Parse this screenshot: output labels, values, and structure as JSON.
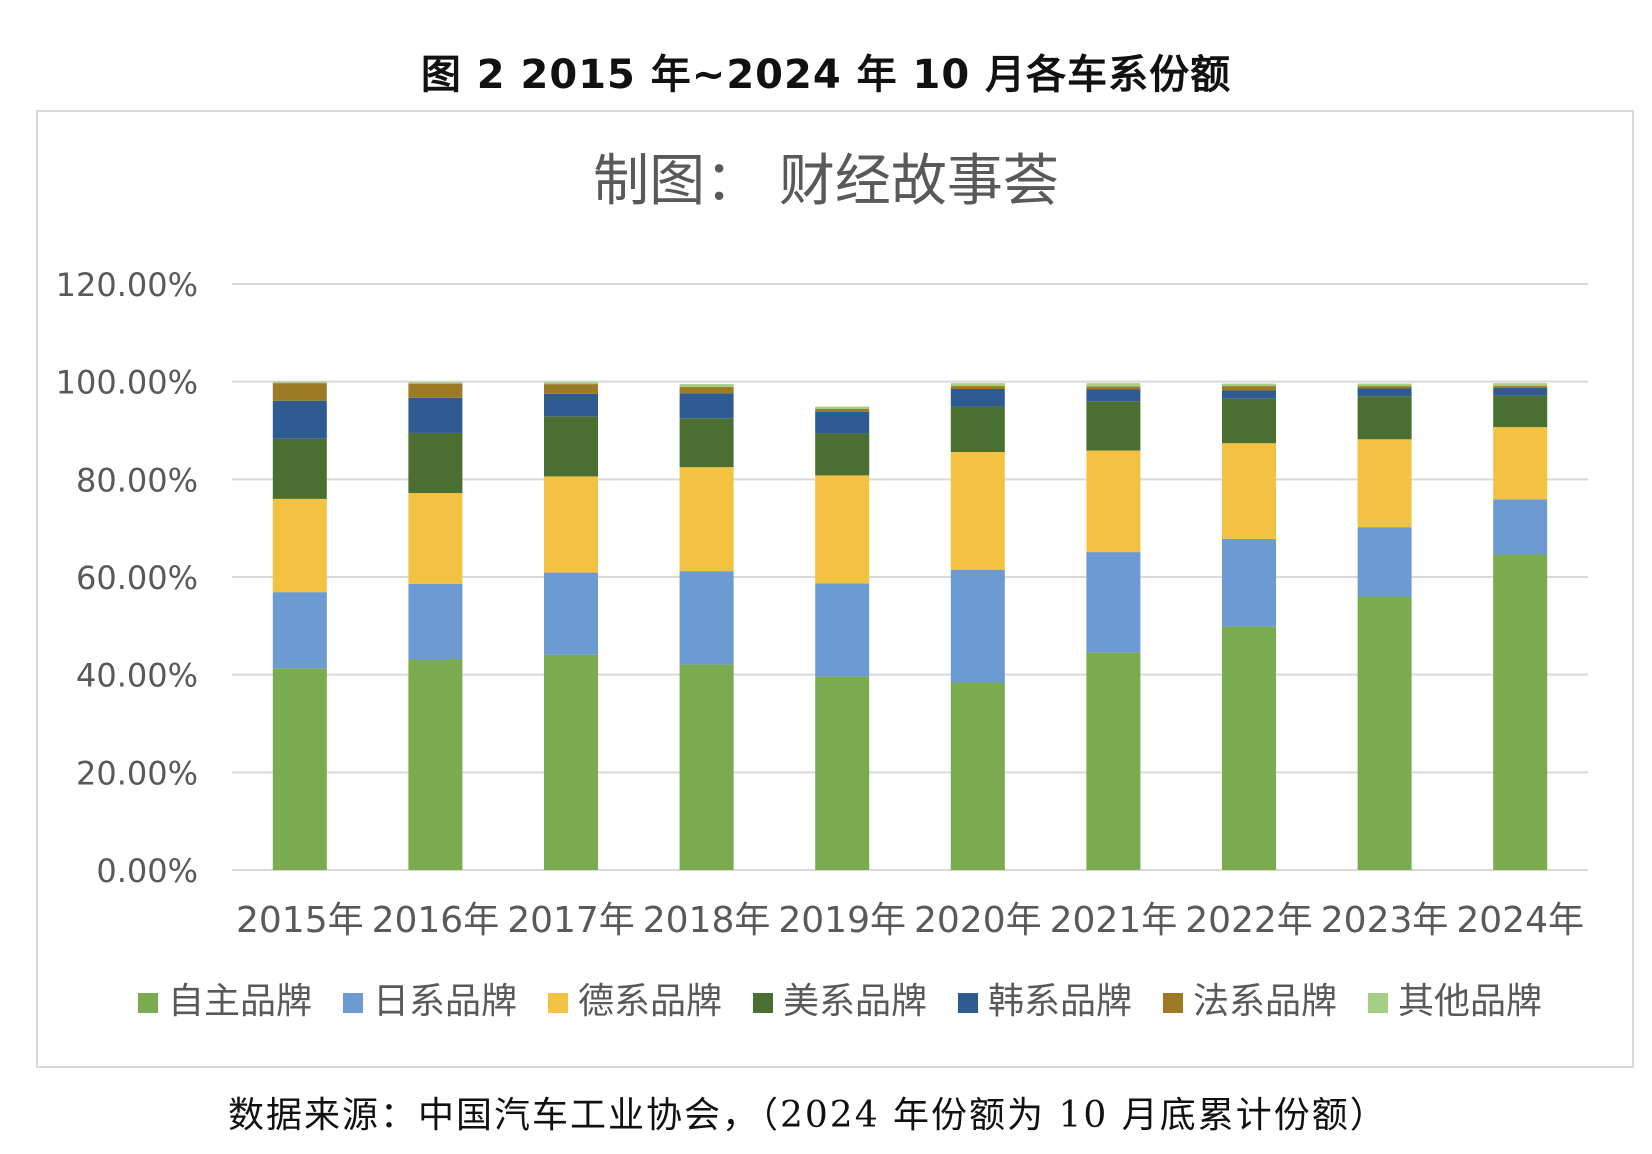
{
  "figure_caption": "图 2 2015 年~2024 年 10 月各车系份额",
  "source_note": "数据来源：中国汽车工业协会，（2024 年份额为 10 月底累计份额）",
  "chart_data": {
    "type": "bar",
    "stacked": true,
    "title": "制图：  财经故事荟",
    "categories": [
      "2015年",
      "2016年",
      "2017年",
      "2018年",
      "2019年",
      "2020年",
      "2021年",
      "2022年",
      "2023年",
      "2024年"
    ],
    "series": [
      {
        "name": "自主品牌",
        "color": "#7aab4e",
        "values": [
          41.3,
          43.2,
          44.1,
          42.1,
          39.6,
          38.4,
          44.5,
          49.9,
          56.0,
          64.6
        ]
      },
      {
        "name": "日系品牌",
        "color": "#6b9bd2",
        "values": [
          15.6,
          15.4,
          16.8,
          19.1,
          19.1,
          23.1,
          20.6,
          17.9,
          14.2,
          11.3
        ]
      },
      {
        "name": "德系品牌",
        "color": "#f4c242",
        "values": [
          19.1,
          18.6,
          19.7,
          21.3,
          22.1,
          24.1,
          20.8,
          19.6,
          18.0,
          14.8
        ]
      },
      {
        "name": "美系品牌",
        "color": "#4a6f30",
        "values": [
          12.3,
          12.3,
          12.3,
          10.0,
          8.6,
          9.3,
          10.1,
          9.1,
          8.8,
          6.4
        ]
      },
      {
        "name": "韩系品牌",
        "color": "#2e5c92",
        "values": [
          7.8,
          7.2,
          4.6,
          5.1,
          4.4,
          3.6,
          2.4,
          1.7,
          1.6,
          1.6
        ]
      },
      {
        "name": "法系品牌",
        "color": "#9c7a26",
        "values": [
          3.6,
          2.9,
          2.0,
          1.3,
          0.6,
          0.6,
          0.6,
          0.9,
          0.5,
          0.4
        ]
      },
      {
        "name": "其他品牌",
        "color": "#a6cf86",
        "values": [
          0.3,
          0.3,
          0.4,
          0.6,
          0.5,
          0.6,
          0.7,
          0.5,
          0.5,
          0.6
        ]
      }
    ],
    "ylim": [
      0,
      120
    ],
    "yticks": [
      "0.00%",
      "20.00%",
      "40.00%",
      "60.00%",
      "80.00%",
      "100.00%",
      "120.00%"
    ],
    "ytick_values": [
      0,
      20,
      40,
      60,
      80,
      100,
      120
    ],
    "legend_position": "bottom",
    "grid": true,
    "xlabel": "",
    "ylabel": ""
  }
}
